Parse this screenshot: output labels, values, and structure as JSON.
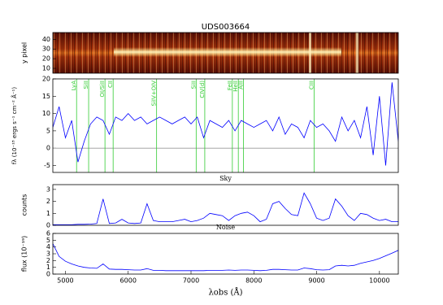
{
  "chart_data": [
    {
      "type": "image",
      "title": "UDS003664",
      "ylabel": "y pixel",
      "ylim": [
        5,
        47
      ],
      "yticks": [
        10,
        20,
        30,
        40
      ]
    },
    {
      "type": "line",
      "ylabel": "fλ (10⁻¹⁸ ergs s⁻¹ cm⁻² Å⁻¹)",
      "color": "#0000ff",
      "xlim": [
        4800,
        10300
      ],
      "ylim": [
        -7,
        20
      ],
      "yticks": [
        -5,
        0,
        5,
        10,
        15,
        20
      ],
      "hline": 0,
      "line_color": "#33cc33",
      "lines": [
        {
          "label": "LyA",
          "x": 5178
        },
        {
          "label": "SiII",
          "x": 5370
        },
        {
          "label": "OI/SiII",
          "x": 5630
        },
        {
          "label": "CII",
          "x": 5760
        },
        {
          "label": "SiIV+OIV",
          "x": 6452
        },
        {
          "label": "SiII",
          "x": 7082
        },
        {
          "label": "CIV(d)",
          "x": 7219
        },
        {
          "label": "FeII",
          "x": 7658
        },
        {
          "label": "HeII",
          "x": 7753
        },
        {
          "label": "AlII",
          "x": 7836
        },
        {
          "label": "CIII",
          "x": 8959
        }
      ],
      "x": [
        4800,
        4900,
        5000,
        5100,
        5200,
        5300,
        5400,
        5500,
        5600,
        5700,
        5800,
        5900,
        6000,
        6100,
        6200,
        6300,
        6400,
        6500,
        6600,
        6700,
        6800,
        6900,
        7000,
        7100,
        7200,
        7300,
        7400,
        7500,
        7600,
        7700,
        7800,
        7900,
        8000,
        8100,
        8200,
        8300,
        8400,
        8500,
        8600,
        8700,
        8800,
        8900,
        9000,
        9100,
        9200,
        9300,
        9400,
        9500,
        9600,
        9700,
        9800,
        9900,
        10000,
        10100,
        10200,
        10300
      ],
      "values": [
        6,
        12,
        3,
        8,
        -4,
        2,
        7,
        9,
        8,
        4,
        9,
        8,
        10,
        8,
        9,
        7,
        8,
        9,
        8,
        7,
        8,
        9,
        7,
        9,
        3,
        8,
        7,
        6,
        8,
        5,
        8,
        7,
        6,
        7,
        8,
        5,
        9,
        4,
        7,
        6,
        3,
        8,
        6,
        7,
        5,
        2,
        9,
        5,
        8,
        3,
        12,
        -2,
        15,
        -5,
        19,
        2
      ]
    },
    {
      "type": "line",
      "title": "Sky",
      "ylabel": "counts",
      "color": "#0000ff",
      "xlim": [
        4800,
        10300
      ],
      "ylim": [
        0,
        3.4
      ],
      "yticks": [
        0,
        1,
        2,
        3
      ],
      "x": [
        4800,
        4900,
        5000,
        5100,
        5200,
        5300,
        5400,
        5500,
        5600,
        5700,
        5800,
        5900,
        6000,
        6100,
        6200,
        6300,
        6400,
        6500,
        6600,
        6700,
        6800,
        6900,
        7000,
        7100,
        7200,
        7300,
        7400,
        7500,
        7600,
        7700,
        7800,
        7900,
        8000,
        8100,
        8200,
        8300,
        8400,
        8500,
        8600,
        8700,
        8800,
        8900,
        9000,
        9100,
        9200,
        9300,
        9400,
        9500,
        9600,
        9700,
        9800,
        9900,
        10000,
        10100,
        10200,
        10300
      ],
      "values": [
        0.05,
        0.05,
        0.05,
        0.05,
        0.08,
        0.08,
        0.1,
        0.15,
        2.2,
        0.15,
        0.2,
        0.5,
        0.2,
        0.15,
        0.2,
        1.8,
        0.4,
        0.3,
        0.3,
        0.3,
        0.4,
        0.5,
        0.3,
        0.4,
        0.6,
        1.0,
        0.9,
        0.8,
        0.4,
        0.8,
        1.0,
        1.1,
        0.8,
        0.3,
        0.5,
        1.8,
        2.0,
        1.4,
        0.9,
        0.8,
        2.7,
        1.8,
        0.6,
        0.4,
        0.6,
        2.2,
        1.6,
        0.8,
        0.4,
        1.0,
        0.9,
        0.6,
        0.4,
        0.5,
        0.3,
        0.3
      ]
    },
    {
      "type": "line",
      "title": "Noise",
      "ylabel": "flux (10⁻¹⁹)",
      "xlabel": "λobs (Å)",
      "color": "#0000ff",
      "xlim": [
        4800,
        10300
      ],
      "ylim": [
        0,
        6
      ],
      "yticks": [
        0,
        1,
        2,
        3,
        4,
        5,
        6
      ],
      "xticks": [
        5000,
        6000,
        7000,
        8000,
        9000,
        10000
      ],
      "x": [
        4800,
        4900,
        5000,
        5100,
        5200,
        5300,
        5400,
        5500,
        5600,
        5700,
        5800,
        5900,
        6000,
        6100,
        6200,
        6300,
        6400,
        6500,
        6600,
        6700,
        6800,
        6900,
        7000,
        7100,
        7200,
        7300,
        7400,
        7500,
        7600,
        7700,
        7800,
        7900,
        8000,
        8100,
        8200,
        8300,
        8400,
        8500,
        8600,
        8700,
        8800,
        8900,
        9000,
        9100,
        9200,
        9300,
        9400,
        9500,
        9600,
        9700,
        9800,
        9900,
        10000,
        10100,
        10200,
        10300
      ],
      "values": [
        4.5,
        2.6,
        1.9,
        1.5,
        1.2,
        1.0,
        0.9,
        0.85,
        1.5,
        0.75,
        0.7,
        0.7,
        0.65,
        0.6,
        0.6,
        0.8,
        0.55,
        0.55,
        0.5,
        0.5,
        0.5,
        0.5,
        0.5,
        0.5,
        0.5,
        0.55,
        0.55,
        0.55,
        0.6,
        0.55,
        0.6,
        0.6,
        0.55,
        0.5,
        0.55,
        0.7,
        0.7,
        0.65,
        0.6,
        0.6,
        0.9,
        0.8,
        0.65,
        0.6,
        0.65,
        1.2,
        1.3,
        1.2,
        1.3,
        1.6,
        1.8,
        2.0,
        2.3,
        2.7,
        3.1,
        3.5
      ]
    }
  ]
}
